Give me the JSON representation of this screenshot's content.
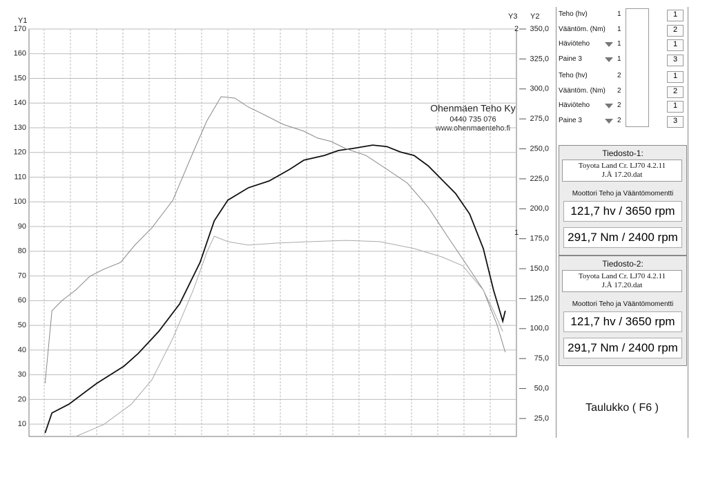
{
  "chart_data": {
    "type": "line",
    "axis_labels": {
      "y1": "Y1",
      "y2": "Y2",
      "y3": "Y3"
    },
    "annotations": [
      "Ohenmäen Teho Ky",
      "0440 735 076",
      "www.ohenmaenteho.fi"
    ],
    "xlim": [
      0,
      100
    ],
    "ylim": [
      5,
      170
    ],
    "yticks": [
      10,
      20,
      30,
      40,
      50,
      60,
      70,
      80,
      90,
      100,
      110,
      120,
      130,
      140,
      150,
      160,
      170
    ],
    "y2lim": [
      10,
      350
    ],
    "y2ticks": [
      {
        "value": 25,
        "label": "25,0"
      },
      {
        "value": 50,
        "label": "50,0"
      },
      {
        "value": 75,
        "label": "75,0"
      },
      {
        "value": 100,
        "label": "100,0"
      },
      {
        "value": 125,
        "label": "125,0"
      },
      {
        "value": 150,
        "label": "150,0"
      },
      {
        "value": 175,
        "label": "175,0"
      },
      {
        "value": 200,
        "label": "200,0"
      },
      {
        "value": 225,
        "label": "225,0"
      },
      {
        "value": 250,
        "label": "250,0"
      },
      {
        "value": 275,
        "label": "275,0"
      },
      {
        "value": 300,
        "label": "300,0"
      },
      {
        "value": 325,
        "label": "325,0"
      },
      {
        "value": 350,
        "label": "350,0"
      }
    ],
    "y3lim": [
      0,
      2
    ],
    "y3ticks": [
      1,
      2
    ],
    "grid": true,
    "series": [
      {
        "color": "#111111",
        "width": 1.8,
        "axis": "y1",
        "x": [
          3.3,
          4.7,
          8.2,
          13.9,
          19.5,
          22.4,
          26.6,
          30.9,
          35.1,
          38.0,
          40.8,
          45.0,
          49.3,
          53.5,
          56.4,
          60.6,
          63.5,
          66.3,
          70.5,
          73.4,
          76.2,
          79.0,
          81.9,
          84.7,
          87.5,
          90.4,
          93.2,
          95.3,
          97.2,
          97.7
        ],
        "values": [
          6.4,
          14.5,
          18.1,
          26.5,
          33.5,
          38.6,
          47.5,
          58.7,
          75.5,
          92.3,
          100.7,
          105.7,
          108.5,
          113.2,
          116.9,
          118.8,
          120.8,
          121.6,
          123.0,
          122.4,
          120.2,
          118.8,
          114.6,
          109.0,
          103.4,
          95.1,
          81.1,
          64.3,
          51.7,
          55.9
        ]
      },
      {
        "color": "#888888",
        "width": 1,
        "axis": "y2",
        "x": [
          3.3,
          4.7,
          6.8,
          9.6,
          12.5,
          15.3,
          18.8,
          21.7,
          25.2,
          29.5,
          33.7,
          36.5,
          39.4,
          42.2,
          45.0,
          47.9,
          52.1,
          56.4,
          59.2,
          62.0,
          64.9,
          69.1,
          73.4,
          77.6,
          81.9,
          86.1,
          90.4,
          93.2,
          96.0,
          97.7
        ],
        "values": [
          54.4,
          114.9,
          123.5,
          132.2,
          143.7,
          149.5,
          155.2,
          169.6,
          184.0,
          207.1,
          247.4,
          273.4,
          293.5,
          292.4,
          284.9,
          279.2,
          270.5,
          264.7,
          259.0,
          256.1,
          250.3,
          244.6,
          233.0,
          221.5,
          201.3,
          175.4,
          149.5,
          132.2,
          103.4,
          80.3
        ]
      },
      {
        "color": "#aaaaaa",
        "width": 1,
        "axis": "y1",
        "x": [
          9.6,
          15.3,
          21.0,
          25.2,
          29.5,
          33.7,
          36.5,
          38.0,
          40.8,
          45.0,
          50.7,
          57.8,
          64.9,
          72.0,
          79.0,
          84.7,
          89.0,
          93.2,
          95.3,
          97.2
        ],
        "values": [
          5,
          9.8,
          18.1,
          27.9,
          44.7,
          64.3,
          79.7,
          86.1,
          83.9,
          82.5,
          83.3,
          83.9,
          84.4,
          83.9,
          81.1,
          77.7,
          74.1,
          64.3,
          55.9,
          47.5
        ]
      }
    ]
  },
  "panel": {
    "legend": [
      {
        "label": "Teho (hv)",
        "group": 1,
        "spin": 1
      },
      {
        "label": "Vääntöm. (Nm)",
        "group": 1,
        "spin": 2
      },
      {
        "label": "Häviöteho",
        "group": 1,
        "spin": 1
      },
      {
        "label": "Paine 3",
        "group": 1,
        "spin": 3
      },
      {
        "label": "Teho (hv)",
        "group": 2,
        "spin": 1
      },
      {
        "label": "Vääntöm. (Nm)",
        "group": 2,
        "spin": 2
      },
      {
        "label": "Häviöteho",
        "group": 2,
        "spin": 1
      },
      {
        "label": "Paine 3",
        "group": 2,
        "spin": 3
      }
    ],
    "files": [
      {
        "title": "Tiedosto-1:",
        "file": "Toyota Land Cr. LJ70 4.2.11",
        "file2": "J.Å 17.20.dat",
        "subtitle": "Moottori Teho ja Vääntömomentti",
        "power": "121,7 hv / 3650 rpm",
        "torque": "291,7 Nm / 2400 rpm"
      },
      {
        "title": "Tiedosto-2:",
        "file": "Toyota Land Cr. LJ70 4.2.11",
        "file2": "J.Å 17.20.dat",
        "subtitle": "Moottori Teho ja Vääntömomentti",
        "power": "121,7 hv / 3650 rpm",
        "torque": "291,7 Nm / 2400 rpm"
      }
    ],
    "table_button": "Taulukko ( F6 )"
  }
}
